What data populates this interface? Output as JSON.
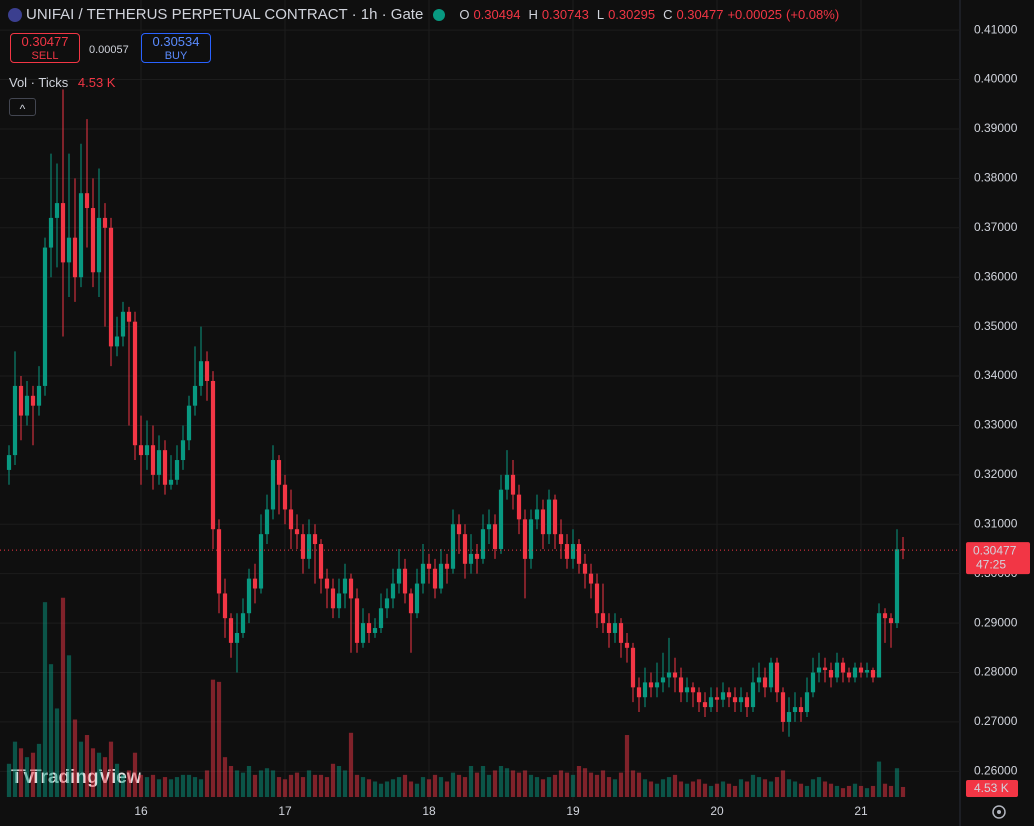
{
  "chart_data": {
    "type": "candlestick",
    "title": "UNIFAI / TETHERUS PERPETUAL CONTRACT · 1h · Gate",
    "ohlc_labels": [
      "O",
      "H",
      "L",
      "C"
    ],
    "change": "+0.00025",
    "change_percent": "(+0.08%)",
    "sell_price": 0.30477,
    "sell_label": "SELL",
    "spread": 0.00057,
    "buy_price": 0.30534,
    "buy_label": "BUY",
    "volume_title": "Vol · Ticks",
    "volume_last_label": "4.53 K",
    "countdown": "47:25",
    "brand": "TradingView",
    "up_color": "#089981",
    "down_color": "#f23645",
    "ylim": [
      0.2542,
      0.4161
    ],
    "yticks": [
      {
        "value": 0.26,
        "label": "0.26000"
      },
      {
        "value": 0.27,
        "label": "0.27000"
      },
      {
        "value": 0.28,
        "label": "0.28000"
      },
      {
        "value": 0.29,
        "label": "0.29000"
      },
      {
        "value": 0.3,
        "label": "0.30000"
      },
      {
        "value": 0.31,
        "label": "0.31000"
      },
      {
        "value": 0.32,
        "label": "0.32000"
      },
      {
        "value": 0.33,
        "label": "0.33000"
      },
      {
        "value": 0.34,
        "label": "0.34000"
      },
      {
        "value": 0.35,
        "label": "0.35000"
      },
      {
        "value": 0.36,
        "label": "0.36000"
      },
      {
        "value": 0.37,
        "label": "0.37000"
      },
      {
        "value": 0.38,
        "label": "0.38000"
      },
      {
        "value": 0.39,
        "label": "0.39000"
      },
      {
        "value": 0.4,
        "label": "0.40000"
      },
      {
        "value": 0.41,
        "label": "0.41000"
      }
    ],
    "xlim": [
      -1.5,
      158.5
    ],
    "xticks": [
      {
        "value": 22,
        "label": "16"
      },
      {
        "value": 46,
        "label": "17"
      },
      {
        "value": 70,
        "label": "18"
      },
      {
        "value": 94,
        "label": "19"
      },
      {
        "value": 118,
        "label": "20"
      },
      {
        "value": 142,
        "label": "21"
      }
    ],
    "volume_ylim": [
      0,
      360000
    ],
    "open": [
      0.321,
      0.324,
      0.338,
      0.332,
      0.336,
      0.334,
      0.338,
      0.366,
      0.372,
      0.375,
      0.363,
      0.368,
      0.36,
      0.377,
      0.374,
      0.361,
      0.372,
      0.37,
      0.346,
      0.348,
      0.353,
      0.351,
      0.326,
      0.324,
      0.326,
      0.32,
      0.325,
      0.318,
      0.319,
      0.323,
      0.327,
      0.334,
      0.338,
      0.343,
      0.339,
      0.309,
      0.296,
      0.291,
      0.286,
      0.288,
      0.292,
      0.299,
      0.297,
      0.308,
      0.313,
      0.323,
      0.318,
      0.313,
      0.309,
      0.308,
      0.303,
      0.308,
      0.306,
      0.299,
      0.297,
      0.293,
      0.296,
      0.299,
      0.295,
      0.286,
      0.29,
      0.288,
      0.289,
      0.293,
      0.295,
      0.298,
      0.301,
      0.296,
      0.292,
      0.298,
      0.302,
      0.301,
      0.297,
      0.302,
      0.301,
      0.31,
      0.308,
      0.302,
      0.304,
      0.303,
      0.309,
      0.31,
      0.305,
      0.317,
      0.32,
      0.316,
      0.311,
      0.303,
      0.311,
      0.313,
      0.308,
      0.315,
      0.308,
      0.306,
      0.303,
      0.306,
      0.302,
      0.3,
      0.298,
      0.292,
      0.29,
      0.288,
      0.29,
      0.286,
      0.285,
      0.277,
      0.275,
      0.278,
      0.277,
      0.278,
      0.279,
      0.28,
      0.279,
      0.276,
      0.277,
      0.276,
      0.274,
      0.273,
      0.275,
      0.2745,
      0.276,
      0.275,
      0.274,
      0.275,
      0.273,
      0.278,
      0.279,
      0.277,
      0.282,
      0.276,
      0.27,
      0.272,
      0.273,
      0.272,
      0.276,
      0.28,
      0.281,
      0.2805,
      0.279,
      0.282,
      0.28,
      0.279,
      0.281,
      0.28,
      0.2805,
      0.279,
      0.292,
      0.291,
      0.29,
      0.30494
    ],
    "high": [
      0.326,
      0.345,
      0.34,
      0.339,
      0.338,
      0.342,
      0.368,
      0.385,
      0.383,
      0.398,
      0.385,
      0.38,
      0.387,
      0.392,
      0.38,
      0.382,
      0.375,
      0.372,
      0.352,
      0.355,
      0.354,
      0.353,
      0.332,
      0.331,
      0.33,
      0.328,
      0.327,
      0.324,
      0.326,
      0.33,
      0.336,
      0.346,
      0.35,
      0.345,
      0.341,
      0.311,
      0.299,
      0.292,
      0.292,
      0.295,
      0.301,
      0.302,
      0.312,
      0.316,
      0.326,
      0.324,
      0.32,
      0.317,
      0.312,
      0.31,
      0.311,
      0.31,
      0.307,
      0.301,
      0.299,
      0.299,
      0.302,
      0.3,
      0.297,
      0.293,
      0.292,
      0.291,
      0.296,
      0.297,
      0.301,
      0.305,
      0.303,
      0.297,
      0.301,
      0.306,
      0.304,
      0.303,
      0.305,
      0.304,
      0.313,
      0.312,
      0.31,
      0.308,
      0.306,
      0.312,
      0.313,
      0.312,
      0.32,
      0.325,
      0.323,
      0.318,
      0.313,
      0.313,
      0.316,
      0.315,
      0.317,
      0.316,
      0.311,
      0.308,
      0.309,
      0.307,
      0.304,
      0.302,
      0.3,
      0.298,
      0.292,
      0.292,
      0.291,
      0.288,
      0.286,
      0.279,
      0.281,
      0.28,
      0.282,
      0.284,
      0.287,
      0.283,
      0.281,
      0.279,
      0.278,
      0.277,
      0.276,
      0.277,
      0.277,
      0.278,
      0.277,
      0.277,
      0.277,
      0.276,
      0.281,
      0.282,
      0.281,
      0.283,
      0.283,
      0.277,
      0.275,
      0.276,
      0.275,
      0.279,
      0.283,
      0.284,
      0.283,
      0.282,
      0.284,
      0.283,
      0.281,
      0.282,
      0.282,
      0.282,
      0.281,
      0.294,
      0.293,
      0.292,
      0.309,
      0.30743
    ],
    "low": [
      0.318,
      0.322,
      0.327,
      0.33,
      0.326,
      0.332,
      0.336,
      0.36,
      0.362,
      0.348,
      0.356,
      0.355,
      0.358,
      0.366,
      0.358,
      0.356,
      0.35,
      0.342,
      0.344,
      0.346,
      0.33,
      0.323,
      0.318,
      0.321,
      0.317,
      0.318,
      0.316,
      0.317,
      0.318,
      0.321,
      0.325,
      0.332,
      0.336,
      0.335,
      0.305,
      0.292,
      0.287,
      0.283,
      0.28,
      0.287,
      0.29,
      0.294,
      0.296,
      0.306,
      0.311,
      0.312,
      0.31,
      0.305,
      0.305,
      0.3,
      0.301,
      0.298,
      0.296,
      0.293,
      0.291,
      0.291,
      0.293,
      0.284,
      0.284,
      0.285,
      0.286,
      0.287,
      0.288,
      0.291,
      0.293,
      0.296,
      0.294,
      0.284,
      0.291,
      0.296,
      0.298,
      0.295,
      0.296,
      0.298,
      0.3,
      0.304,
      0.299,
      0.3,
      0.3,
      0.302,
      0.306,
      0.303,
      0.304,
      0.315,
      0.313,
      0.308,
      0.295,
      0.301,
      0.309,
      0.305,
      0.306,
      0.305,
      0.303,
      0.301,
      0.301,
      0.3,
      0.297,
      0.295,
      0.289,
      0.288,
      0.285,
      0.286,
      0.283,
      0.282,
      0.274,
      0.272,
      0.273,
      0.275,
      0.275,
      0.276,
      0.277,
      0.276,
      0.274,
      0.274,
      0.273,
      0.272,
      0.271,
      0.272,
      0.272,
      0.273,
      0.273,
      0.272,
      0.272,
      0.271,
      0.272,
      0.276,
      0.275,
      0.276,
      0.274,
      0.268,
      0.267,
      0.27,
      0.27,
      0.271,
      0.275,
      0.278,
      0.278,
      0.277,
      0.278,
      0.278,
      0.278,
      0.278,
      0.279,
      0.279,
      0.278,
      0.279,
      0.286,
      0.285,
      0.289,
      0.30295
    ],
    "close": [
      0.324,
      0.338,
      0.332,
      0.336,
      0.334,
      0.338,
      0.366,
      0.372,
      0.375,
      0.363,
      0.368,
      0.36,
      0.377,
      0.374,
      0.361,
      0.372,
      0.37,
      0.346,
      0.348,
      0.353,
      0.351,
      0.326,
      0.324,
      0.326,
      0.32,
      0.325,
      0.318,
      0.319,
      0.323,
      0.327,
      0.334,
      0.338,
      0.343,
      0.339,
      0.309,
      0.296,
      0.291,
      0.286,
      0.288,
      0.292,
      0.299,
      0.297,
      0.308,
      0.313,
      0.323,
      0.318,
      0.313,
      0.309,
      0.308,
      0.303,
      0.308,
      0.306,
      0.299,
      0.297,
      0.293,
      0.296,
      0.299,
      0.295,
      0.286,
      0.29,
      0.288,
      0.289,
      0.293,
      0.295,
      0.298,
      0.301,
      0.296,
      0.292,
      0.298,
      0.302,
      0.301,
      0.297,
      0.302,
      0.301,
      0.31,
      0.308,
      0.302,
      0.304,
      0.303,
      0.309,
      0.31,
      0.305,
      0.317,
      0.32,
      0.316,
      0.311,
      0.303,
      0.311,
      0.313,
      0.308,
      0.315,
      0.308,
      0.306,
      0.303,
      0.306,
      0.302,
      0.3,
      0.298,
      0.292,
      0.29,
      0.288,
      0.29,
      0.286,
      0.285,
      0.277,
      0.275,
      0.278,
      0.277,
      0.278,
      0.279,
      0.28,
      0.279,
      0.276,
      0.277,
      0.276,
      0.274,
      0.273,
      0.275,
      0.2745,
      0.276,
      0.275,
      0.274,
      0.275,
      0.273,
      0.278,
      0.279,
      0.277,
      0.282,
      0.276,
      0.27,
      0.272,
      0.273,
      0.272,
      0.276,
      0.28,
      0.281,
      0.2805,
      0.279,
      0.282,
      0.28,
      0.279,
      0.281,
      0.28,
      0.2805,
      0.279,
      0.292,
      0.291,
      0.29,
      0.30494,
      0.30477
    ],
    "volume": [
      15000,
      25000,
      22000,
      18000,
      20000,
      24000,
      88000,
      60000,
      40000,
      90000,
      64000,
      35000,
      25000,
      28000,
      22000,
      20000,
      18000,
      25000,
      15000,
      10000,
      12000,
      20000,
      10000,
      9000,
      10000,
      8000,
      9000,
      8000,
      9000,
      10000,
      10000,
      9000,
      8000,
      12000,
      53000,
      52000,
      18000,
      14000,
      12000,
      11000,
      14000,
      10000,
      12000,
      13000,
      12000,
      9000,
      8000,
      10000,
      11000,
      9000,
      12000,
      10000,
      10000,
      9000,
      15000,
      14000,
      12000,
      29000,
      10000,
      9000,
      8000,
      7000,
      6000,
      7000,
      8000,
      9000,
      10000,
      7000,
      6000,
      9000,
      8000,
      10000,
      9000,
      7000,
      11000,
      10000,
      9000,
      14000,
      11000,
      14000,
      10000,
      12000,
      14000,
      13000,
      12000,
      11000,
      12000,
      10000,
      9000,
      8000,
      9000,
      10000,
      12000,
      11000,
      10000,
      14000,
      13000,
      11000,
      10000,
      12000,
      9000,
      8000,
      11000,
      28000,
      12000,
      11000,
      8000,
      7000,
      6000,
      8000,
      9000,
      10000,
      7000,
      6000,
      7000,
      8000,
      6000,
      5000,
      6000,
      7000,
      6000,
      5000,
      8000,
      7000,
      10000,
      9000,
      8000,
      7000,
      9000,
      12000,
      8000,
      7000,
      6000,
      5000,
      8000,
      9000,
      7000,
      6000,
      5000,
      4000,
      5000,
      6000,
      5000,
      4000,
      5000,
      16000,
      6000,
      5000,
      13000,
      4530
    ]
  }
}
